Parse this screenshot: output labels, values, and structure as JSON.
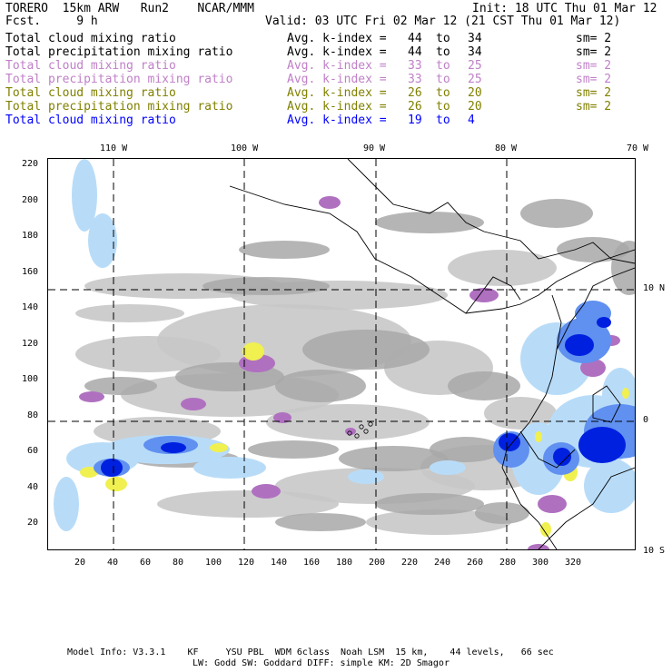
{
  "header": {
    "model": "TORERO  15km ARW   Run2    NCAR/MMM",
    "fcst": "Fcst.     9 h",
    "init": "Init: 18 UTC Thu 01 Mar 12",
    "valid": "Valid: 03 UTC Fri 02 Mar 12 (21 CST Thu 01 Mar 12)"
  },
  "legend": [
    {
      "field": "Total cloud mixing ratio",
      "index_label": "Avg. k-index =",
      "from": "44",
      "to_word": "to",
      "to": "34",
      "sm": "sm= 2",
      "color": "#000000"
    },
    {
      "field": "Total precipitation mixing ratio",
      "index_label": "Avg. k-index =",
      "from": "44",
      "to_word": "to",
      "to": "34",
      "sm": "sm= 2",
      "color": "#000000"
    },
    {
      "field": "Total cloud mixing ratio",
      "index_label": "Avg. k-index =",
      "from": "33",
      "to_word": "to",
      "to": "25",
      "sm": "sm= 2",
      "color": "#c080c8"
    },
    {
      "field": "Total precipitation mixing ratio",
      "index_label": "Avg. k-index =",
      "from": "33",
      "to_word": "to",
      "to": "25",
      "sm": "sm= 2",
      "color": "#c080c8"
    },
    {
      "field": "Total cloud mixing ratio",
      "index_label": "Avg. k-index =",
      "from": "26",
      "to_word": "to",
      "to": "20",
      "sm": "sm= 2",
      "color": "#808000"
    },
    {
      "field": "Total precipitation mixing ratio",
      "index_label": "Avg. k-index =",
      "from": "26",
      "to_word": "to",
      "to": "20",
      "sm": "sm= 2",
      "color": "#808000"
    },
    {
      "field": "Total cloud mixing ratio",
      "index_label": "Avg. k-index =",
      "from": "19",
      "to_word": "to",
      "to": "4",
      "sm": "",
      "color": "#0000ff"
    }
  ],
  "lon_labels": [
    "110 W",
    "100 W",
    "90 W",
    "80 W",
    "70 W"
  ],
  "lat_labels": [
    "10 N",
    "0",
    "10 S"
  ],
  "x_ticks": [
    "20",
    "40",
    "60",
    "80",
    "100",
    "120",
    "140",
    "160",
    "180",
    "200",
    "220",
    "240",
    "260",
    "280",
    "300",
    "320"
  ],
  "y_ticks": [
    "220",
    "200",
    "180",
    "160",
    "140",
    "120",
    "100",
    "80",
    "60",
    "40",
    "20"
  ],
  "footer": {
    "line1": "Model Info: V3.3.1    KF     YSU PBL  WDM 6class  Noah LSM  15 km,    44 levels,   66 sec",
    "line2": "LW: Godd SW: Goddard DIFF: simple KM: 2D Smagor"
  },
  "colors": {
    "gray": "#a8a8a8",
    "light_gray": "#c8c8c8",
    "purple": "#b070c0",
    "yellow": "#f0f050",
    "light_blue": "#b8dcf8",
    "mid_blue": "#6090f0",
    "blue": "#0020e0"
  }
}
